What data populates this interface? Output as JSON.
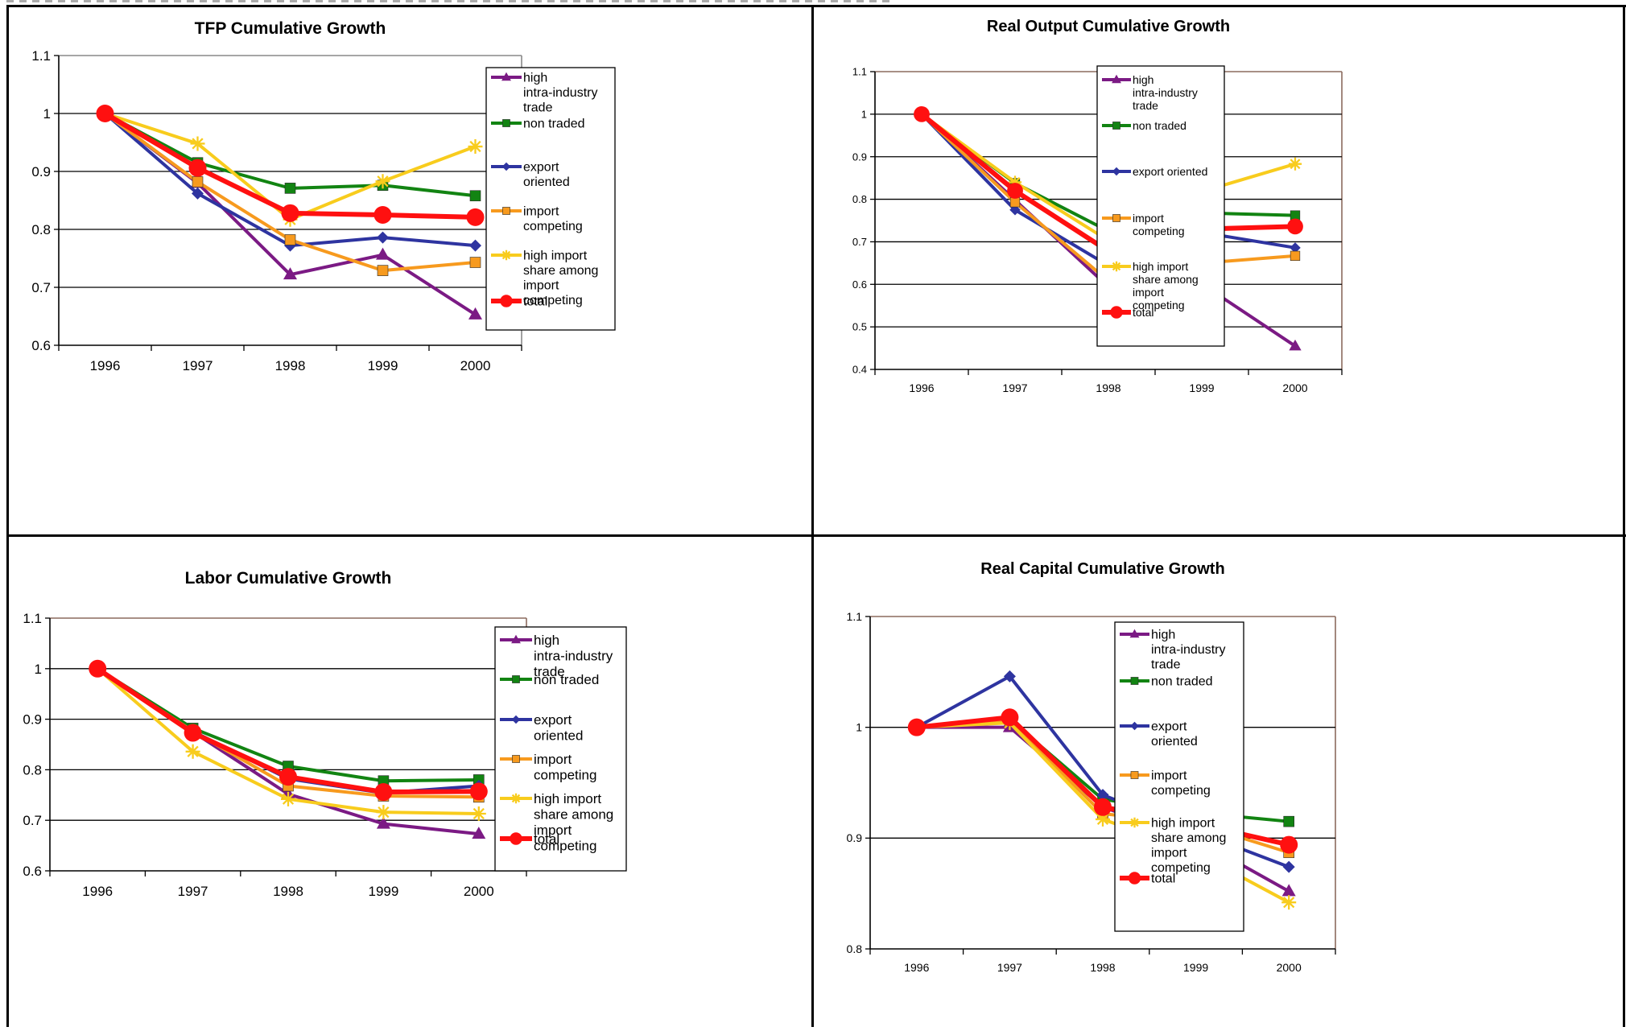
{
  "colors": {
    "high_intra": "#7b1a84",
    "non_traded": "#128412",
    "export_oriented": "#2e34a0",
    "import_competing": "#f79a1e",
    "high_import_share": "#f8cc1d",
    "total": "#ff1010",
    "plot_border_top_left": "#888888",
    "plot_border_other": "#8b6b5e"
  },
  "chart_data": [
    {
      "id": "tfp",
      "type": "line",
      "title": "TFP Cumulative Growth",
      "categories": [
        "1996",
        "1997",
        "1998",
        "1999",
        "2000"
      ],
      "ylim": [
        0.6,
        1.1
      ],
      "yticks": [
        "0.6",
        "0.7",
        "0.8",
        "0.9",
        "1",
        "1.1"
      ],
      "grid": true,
      "legend": "right",
      "series": [
        {
          "name": "high intra-industry trade",
          "key": "high_intra",
          "marker": "triangle",
          "values": [
            1.0,
            0.88,
            0.722,
            0.756,
            0.653
          ]
        },
        {
          "name": "non traded",
          "key": "non_traded",
          "marker": "square",
          "values": [
            1.0,
            0.915,
            0.871,
            0.876,
            0.858
          ]
        },
        {
          "name": "export oriented",
          "key": "export_oriented",
          "marker": "diamond",
          "values": [
            1.0,
            0.862,
            0.772,
            0.786,
            0.772
          ]
        },
        {
          "name": "import competing",
          "key": "import_competing",
          "marker": "square",
          "values": [
            1.0,
            0.882,
            0.782,
            0.729,
            0.743
          ]
        },
        {
          "name": "high import share among import competing",
          "key": "high_import_share",
          "marker": "star",
          "values": [
            1.0,
            0.948,
            0.817,
            0.883,
            0.943
          ]
        },
        {
          "name": "total",
          "key": "total",
          "marker": "circle",
          "values": [
            1.0,
            0.906,
            0.828,
            0.825,
            0.821
          ]
        }
      ]
    },
    {
      "id": "output",
      "type": "line",
      "title": "Real Output Cumulative Growth",
      "categories": [
        "1996",
        "1997",
        "1998",
        "1999",
        "2000"
      ],
      "ylim": [
        0.4,
        1.1
      ],
      "yticks": [
        "0.4",
        "0.5",
        "0.6",
        "0.7",
        "0.8",
        "0.9",
        "1",
        "1.1"
      ],
      "grid": true,
      "legend": "right",
      "series": [
        {
          "name": "high intra-industry trade",
          "key": "high_intra",
          "marker": "triangle",
          "values": [
            1.0,
            0.798,
            0.594,
            0.601,
            0.455
          ]
        },
        {
          "name": "non traded",
          "key": "non_traded",
          "marker": "square",
          "values": [
            1.0,
            0.838,
            0.725,
            0.768,
            0.762
          ]
        },
        {
          "name": "export oriented",
          "key": "export_oriented",
          "marker": "diamond",
          "values": [
            1.0,
            0.775,
            0.644,
            0.722,
            0.686
          ]
        },
        {
          "name": "import competing",
          "key": "import_competing",
          "marker": "square",
          "values": [
            1.0,
            0.793,
            0.608,
            0.65,
            0.667
          ]
        },
        {
          "name": "high import share among import competing",
          "key": "high_import_share",
          "marker": "star",
          "values": [
            1.0,
            0.84,
            0.703,
            0.818,
            0.883
          ]
        },
        {
          "name": "total",
          "key": "total",
          "marker": "circle",
          "values": [
            1.0,
            0.82,
            0.678,
            0.73,
            0.736
          ]
        }
      ]
    },
    {
      "id": "labor",
      "type": "line",
      "title": "Labor Cumulative Growth",
      "categories": [
        "1996",
        "1997",
        "1998",
        "1999",
        "2000"
      ],
      "ylim": [
        0.6,
        1.1
      ],
      "yticks": [
        "0.6",
        "0.7",
        "0.8",
        "0.9",
        "1",
        "1.1"
      ],
      "grid": true,
      "legend": "right",
      "series": [
        {
          "name": "high intra-industry trade",
          "key": "high_intra",
          "marker": "triangle",
          "values": [
            1.0,
            0.875,
            0.752,
            0.693,
            0.673
          ]
        },
        {
          "name": "non traded",
          "key": "non_traded",
          "marker": "square",
          "values": [
            1.0,
            0.882,
            0.807,
            0.778,
            0.78
          ]
        },
        {
          "name": "export oriented",
          "key": "export_oriented",
          "marker": "diamond",
          "values": [
            1.0,
            0.876,
            0.782,
            0.754,
            0.768
          ]
        },
        {
          "name": "import competing",
          "key": "import_competing",
          "marker": "square",
          "values": [
            1.0,
            0.876,
            0.768,
            0.748,
            0.746
          ]
        },
        {
          "name": "high import share among import competing",
          "key": "high_import_share",
          "marker": "star",
          "values": [
            1.0,
            0.836,
            0.742,
            0.716,
            0.713
          ]
        },
        {
          "name": "total",
          "key": "total",
          "marker": "circle",
          "values": [
            1.0,
            0.873,
            0.786,
            0.756,
            0.757
          ]
        }
      ]
    },
    {
      "id": "capital",
      "type": "line",
      "title": "Real Capital Cumulative Growth",
      "categories": [
        "1996",
        "1997",
        "1998",
        "1999",
        "2000"
      ],
      "ylim": [
        0.8,
        1.1
      ],
      "yticks": [
        "0.8",
        "0.9",
        "1",
        "1.1"
      ],
      "grid": true,
      "legend": "right",
      "series": [
        {
          "name": "high intra-industry trade",
          "key": "high_intra",
          "marker": "triangle",
          "values": [
            1.0,
            1.0,
            0.928,
            0.899,
            0.852
          ]
        },
        {
          "name": "non traded",
          "key": "non_traded",
          "marker": "square",
          "values": [
            1.0,
            1.007,
            0.935,
            0.923,
            0.915
          ]
        },
        {
          "name": "export oriented",
          "key": "export_oriented",
          "marker": "diamond",
          "values": [
            1.0,
            1.046,
            0.939,
            0.906,
            0.874
          ]
        },
        {
          "name": "import competing",
          "key": "import_competing",
          "marker": "square",
          "values": [
            1.0,
            1.006,
            0.922,
            0.913,
            0.887
          ]
        },
        {
          "name": "high import share among import competing",
          "key": "high_import_share",
          "marker": "star",
          "values": [
            1.0,
            1.004,
            0.917,
            0.887,
            0.842
          ]
        },
        {
          "name": "total",
          "key": "total",
          "marker": "circle",
          "values": [
            1.0,
            1.009,
            0.928,
            0.913,
            0.894
          ]
        }
      ]
    }
  ]
}
